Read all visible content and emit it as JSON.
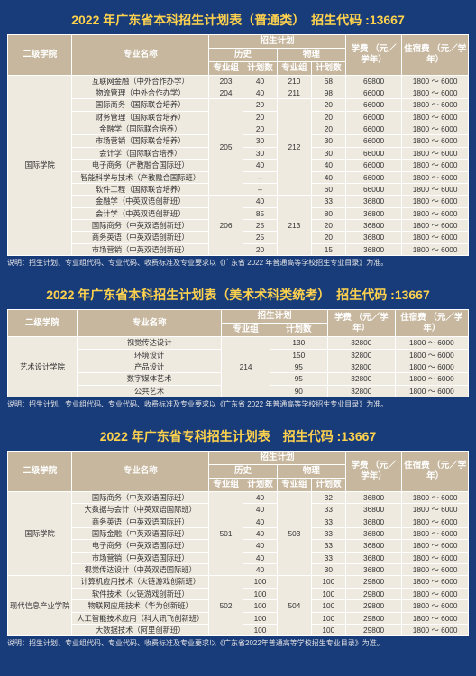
{
  "t1": {
    "title": "2022 年广东省本科招生计划表（普通类）　招生代码 :13667",
    "head": {
      "dept": "二级学院",
      "major": "专业名称",
      "plan": "招生计划",
      "hist": "历史",
      "phys": "物理",
      "grp": "专业组",
      "cnt": "计划数",
      "fee": "学费\n（元／学年）",
      "dorm": "住宿费\n（元／学年）"
    },
    "dept": "国际学院",
    "hist_grp1": "205",
    "phys_grp1": "212",
    "hist_grp2": "206",
    "phys_grp2": "213",
    "hist_grp0a": "203",
    "phys_grp0a": "210",
    "hist_grp0b": "204",
    "phys_grp0b": "211",
    "rows": [
      {
        "major": "互联网金融（中外合作办学）",
        "hg": "203",
        "h": "40",
        "pg": "210",
        "p": "68",
        "fee": "69800",
        "dorm": "1800 ～ 6000"
      },
      {
        "major": "物流管理（中外合作办学）",
        "hg": "204",
        "h": "40",
        "pg": "211",
        "p": "98",
        "fee": "66000",
        "dorm": "1800 ～ 6000"
      },
      {
        "major": "国际商务（国际联合培养）",
        "hg": "@205",
        "h": "20",
        "pg": "@212",
        "p": "20",
        "fee": "66000",
        "dorm": "1800 ～ 6000"
      },
      {
        "major": "财务管理（国际联合培养）",
        "h": "20",
        "p": "20",
        "fee": "66000",
        "dorm": "1800 ～ 6000"
      },
      {
        "major": "金融学（国际联合培养）",
        "h": "20",
        "p": "20",
        "fee": "66000",
        "dorm": "1800 ～ 6000"
      },
      {
        "major": "市场营销（国际联合培养）",
        "h": "30",
        "p": "30",
        "fee": "66000",
        "dorm": "1800 ～ 6000"
      },
      {
        "major": "会计学（国际联合培养）",
        "h": "30",
        "p": "30",
        "fee": "66000",
        "dorm": "1800 ～ 6000"
      },
      {
        "major": "电子商务（产教融合国际班）",
        "h": "40",
        "p": "40",
        "fee": "66000",
        "dorm": "1800 ～ 6000"
      },
      {
        "major": "智能科学与技术（产教融合国际班）",
        "h": "–",
        "p": "40",
        "fee": "66000",
        "dorm": "1800 ～ 6000"
      },
      {
        "major": "软件工程（国际联合培养）",
        "h": "–",
        "p": "60",
        "fee": "66000",
        "dorm": "1800 ～ 6000"
      },
      {
        "major": "金融学（中英双语创新班）",
        "hg": "@206",
        "h": "40",
        "pg": "@213",
        "p": "33",
        "fee": "36800",
        "dorm": "1800 ～ 6000"
      },
      {
        "major": "会计学（中英双语创新班）",
        "h": "85",
        "p": "80",
        "fee": "36800",
        "dorm": "1800 ～ 6000"
      },
      {
        "major": "国际商务（中英双语创新班）",
        "h": "25",
        "p": "20",
        "fee": "36800",
        "dorm": "1800 ～ 6000"
      },
      {
        "major": "商务英语（中英双语创新班）",
        "h": "25",
        "p": "20",
        "fee": "36800",
        "dorm": "1800 ～ 6000"
      },
      {
        "major": "市场营销（中英双语创新班）",
        "h": "20",
        "p": "15",
        "fee": "36800",
        "dorm": "1800 ～ 6000"
      }
    ],
    "note": "说明：招生计划、专业组代码、专业代码、收费标准及专业要求以《广东省 2022 年普通高等学校招生专业目录》为准。"
  },
  "t2": {
    "title": "2022 年广东省本科招生计划表（美术术科类统考）　招生代码 :13667",
    "dept": "艺术设计学院",
    "grp": "214",
    "rows": [
      {
        "major": "视觉传达设计",
        "cnt": "130",
        "fee": "32800",
        "dorm": "1800 ～ 6000"
      },
      {
        "major": "环境设计",
        "cnt": "150",
        "fee": "32800",
        "dorm": "1800 ～ 6000"
      },
      {
        "major": "产品设计",
        "cnt": "95",
        "fee": "32800",
        "dorm": "1800 ～ 6000"
      },
      {
        "major": "数字媒体艺术",
        "cnt": "95",
        "fee": "32800",
        "dorm": "1800 ～ 6000"
      },
      {
        "major": "公共艺术",
        "cnt": "90",
        "fee": "32800",
        "dorm": "1800 ～ 6000"
      }
    ],
    "note": "说明：招生计划、专业组代码、专业代码、收费标准及专业要求以《广东省 2022 年普通高等学校招生专业目录》为准。"
  },
  "t3": {
    "title": "2022 年广东省专科招生计划表　招生代码 :13667",
    "depts": [
      "国际学院",
      "现代信息产业学院"
    ],
    "hist_grp1": "501",
    "phys_grp1": "503",
    "hist_grp2": "502",
    "phys_grp2": "504",
    "rows1": [
      {
        "major": "国际商务（中英双语国际班）",
        "h": "40",
        "p": "32",
        "fee": "36800",
        "dorm": "1800 ～ 6000"
      },
      {
        "major": "大数据与会计（中英双语国际班）",
        "h": "40",
        "p": "33",
        "fee": "36800",
        "dorm": "1800 ～ 6000"
      },
      {
        "major": "商务英语（中英双语国际班）",
        "h": "40",
        "p": "33",
        "fee": "36800",
        "dorm": "1800 ～ 6000"
      },
      {
        "major": "国际金融（中英双语国际班）",
        "h": "40",
        "p": "33",
        "fee": "36800",
        "dorm": "1800 ～ 6000"
      },
      {
        "major": "电子商务（中英双语国际班）",
        "h": "40",
        "p": "33",
        "fee": "36800",
        "dorm": "1800 ～ 6000"
      },
      {
        "major": "市场营销（中英双语国际班）",
        "h": "40",
        "p": "33",
        "fee": "36800",
        "dorm": "1800 ～ 6000"
      },
      {
        "major": "视觉传达设计（中英双语国际班）",
        "h": "40",
        "p": "30",
        "fee": "36800",
        "dorm": "1800 ～ 6000"
      }
    ],
    "rows2": [
      {
        "major": "计算机应用技术（火链游戏创新班）",
        "h": "100",
        "p": "100",
        "fee": "29800",
        "dorm": "1800 ～ 6000"
      },
      {
        "major": "软件技术（火链游戏创新班）",
        "h": "100",
        "p": "100",
        "fee": "29800",
        "dorm": "1800 ～ 6000"
      },
      {
        "major": "物联网应用技术（华为创新班）",
        "h": "100",
        "p": "100",
        "fee": "29800",
        "dorm": "1800 ～ 6000"
      },
      {
        "major": "人工智能技术应用（科大讯飞创新班）",
        "h": "100",
        "p": "100",
        "fee": "29800",
        "dorm": "1800 ～ 6000"
      },
      {
        "major": "大数据技术（阿里创新班）",
        "h": "100",
        "p": "100",
        "fee": "29800",
        "dorm": "1800 ～ 6000"
      }
    ],
    "note": "说明：招生计划、专业组代码、专业代码、收费标准及专业要求以《广东省2022年普通高等学校招生专业目录》为准。"
  }
}
